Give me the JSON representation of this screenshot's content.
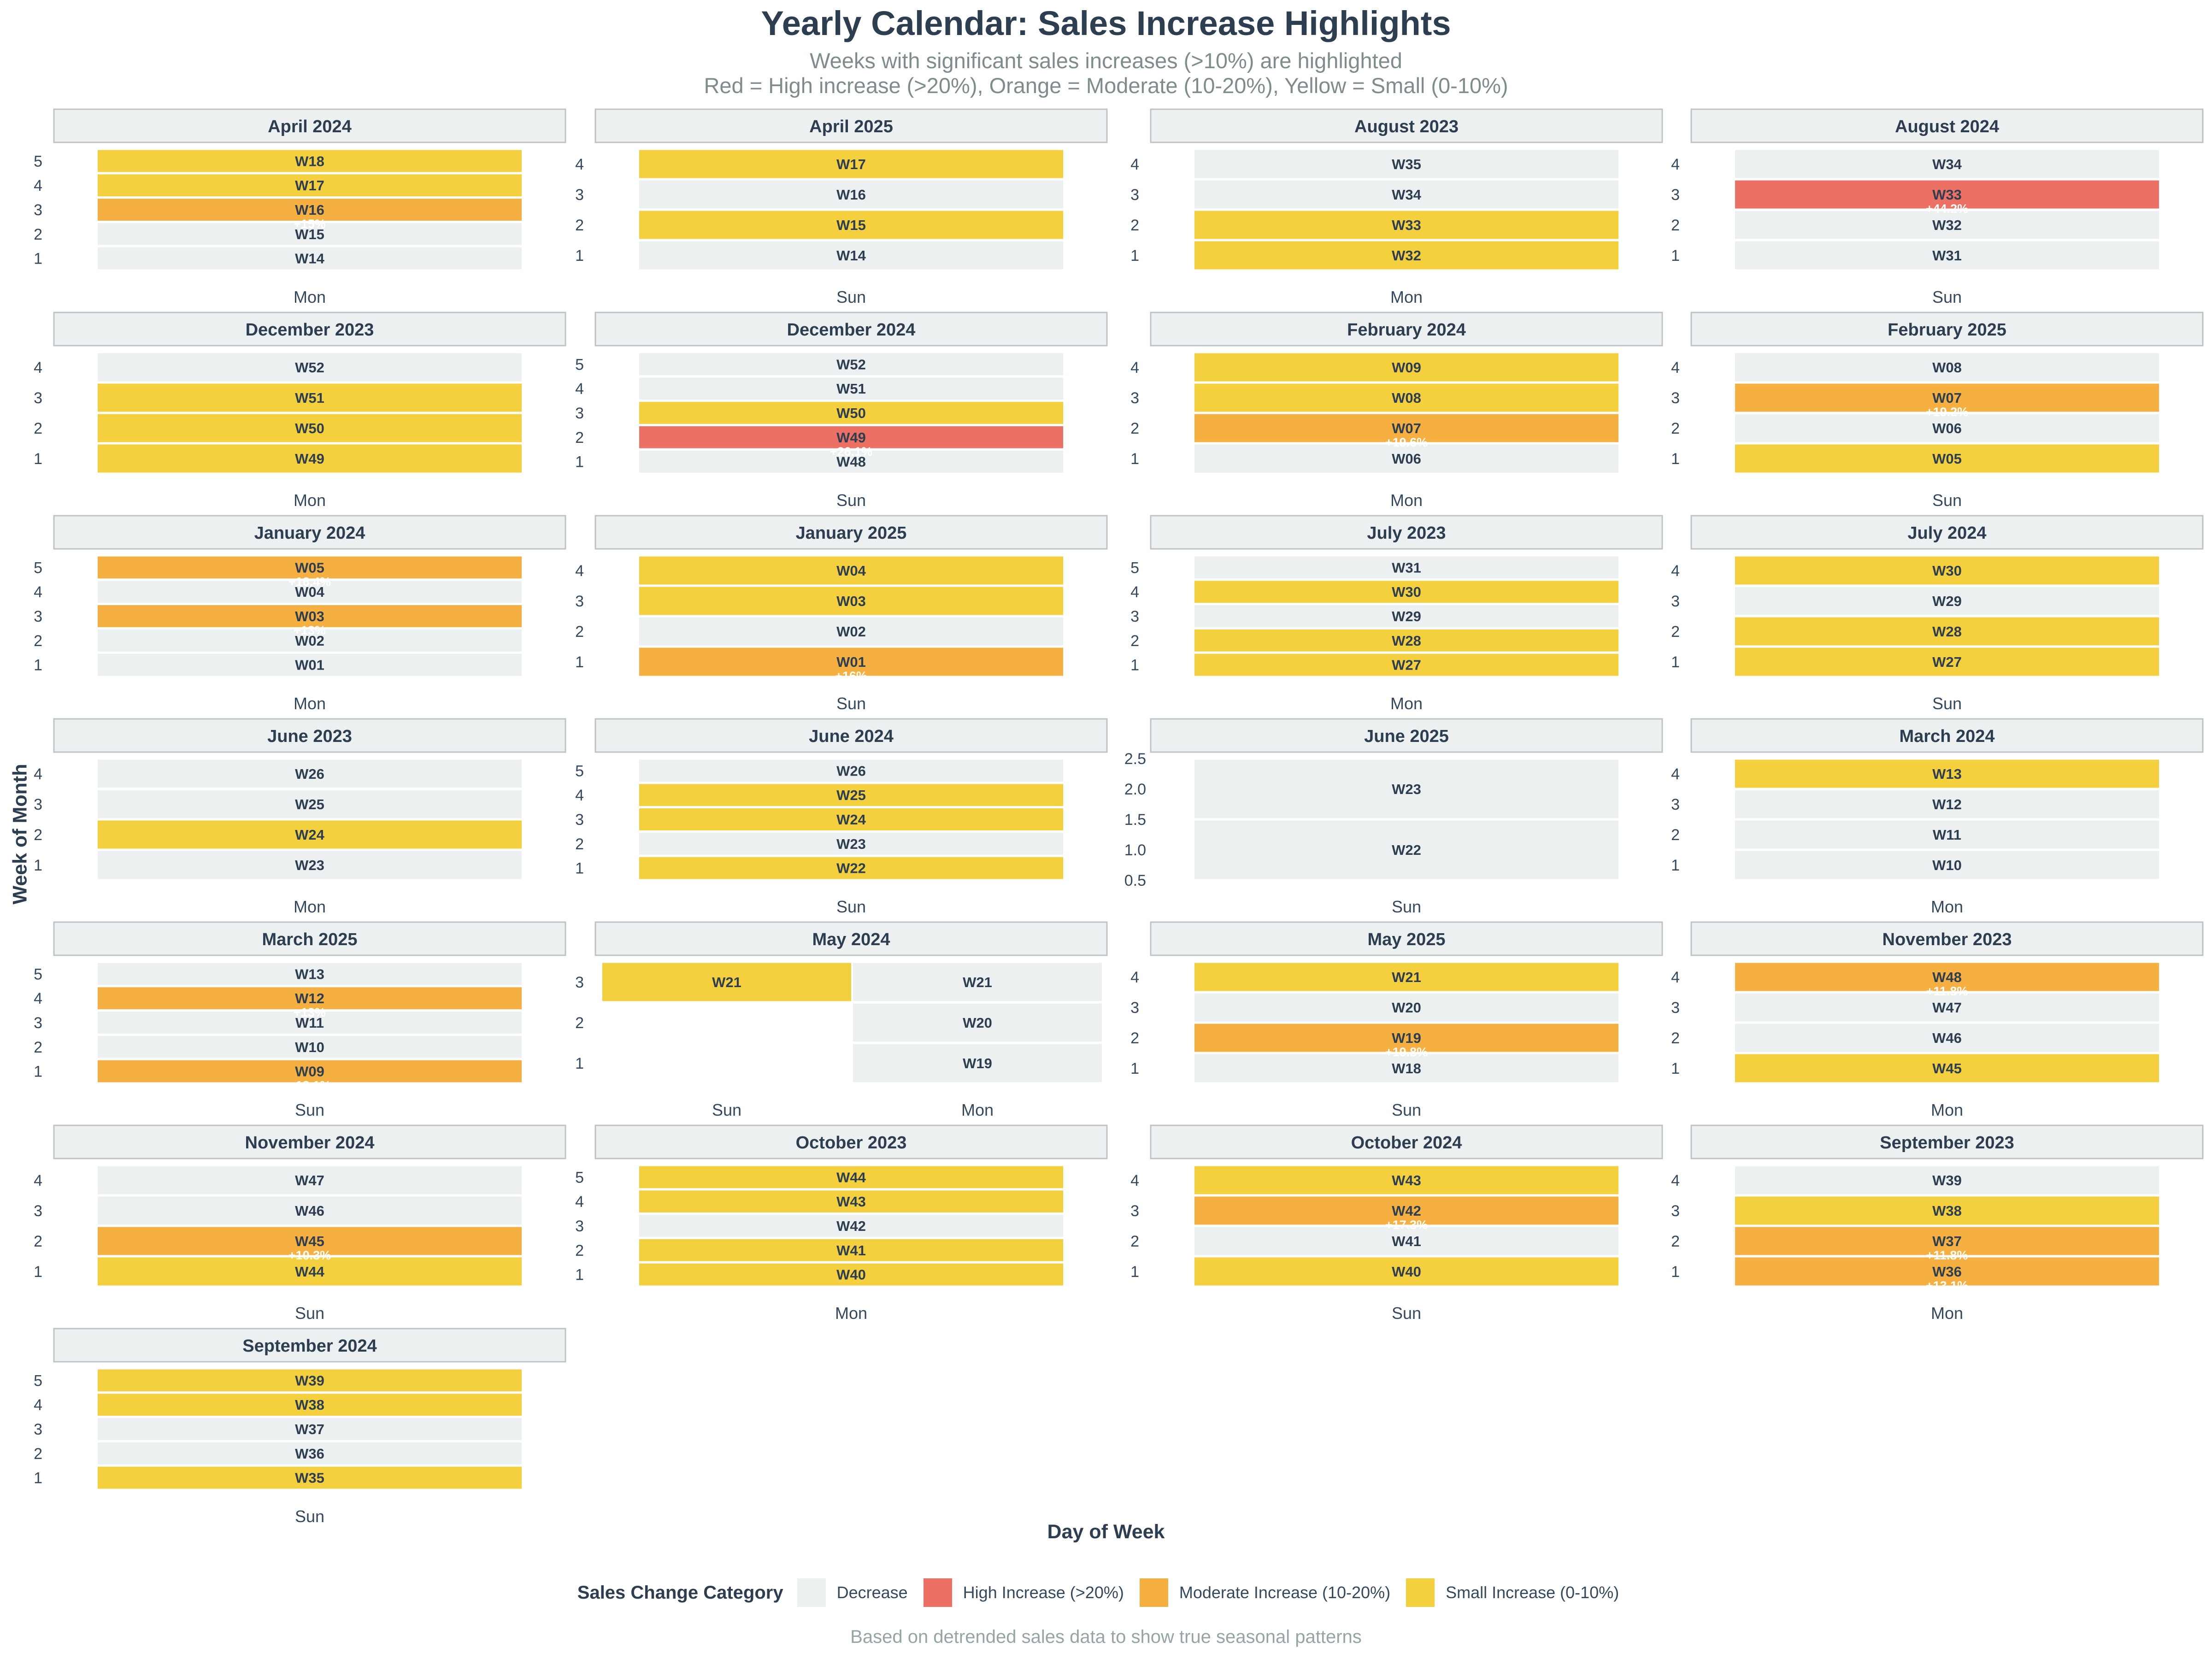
{
  "title": "Yearly Calendar: Sales Increase Highlights",
  "subtitle_line1": "Weeks with significant sales increases (>10%) are highlighted",
  "subtitle_line2": "Red = High increase (>20%), Orange = Moderate (10-20%), Yellow = Small (0-10%)",
  "y_axis_label": "Week of Month",
  "x_axis_label": "Day of Week",
  "caption": "Based on detrended sales data to show true seasonal patterns",
  "legend": {
    "title": "Sales Change Category",
    "items": [
      {
        "label": "Decrease",
        "color": "#ecf0f1"
      },
      {
        "label": "High Increase (>20%)",
        "color": "#ec7063"
      },
      {
        "label": "Moderate Increase (10-20%)",
        "color": "#f5b041"
      },
      {
        "label": "Small Increase (0-10%)",
        "color": "#f4d03f"
      }
    ]
  },
  "colors": {
    "D": "#ecf0f1",
    "H": "#ec7063",
    "M": "#f5b041",
    "S": "#f4d03f",
    "strip": "#ecf0f1",
    "strip_border": "#bdc3c7",
    "text": "#2c3e50"
  },
  "chart_data": {
    "type": "heatmap",
    "panels": [
      {
        "title": "April 2024",
        "day": "Mon",
        "weeks": [
          {
            "wom": 1,
            "label": "W14",
            "cat": "D"
          },
          {
            "wom": 2,
            "label": "W15",
            "cat": "D"
          },
          {
            "wom": 3,
            "label": "W16",
            "cat": "M",
            "pct": "+15%"
          },
          {
            "wom": 4,
            "label": "W17",
            "cat": "S"
          },
          {
            "wom": 5,
            "label": "W18",
            "cat": "S"
          }
        ]
      },
      {
        "title": "April 2025",
        "day": "Sun",
        "weeks": [
          {
            "wom": 1,
            "label": "W14",
            "cat": "D"
          },
          {
            "wom": 2,
            "label": "W15",
            "cat": "S"
          },
          {
            "wom": 3,
            "label": "W16",
            "cat": "D"
          },
          {
            "wom": 4,
            "label": "W17",
            "cat": "S"
          }
        ]
      },
      {
        "title": "August 2023",
        "day": "Mon",
        "weeks": [
          {
            "wom": 1,
            "label": "W32",
            "cat": "S"
          },
          {
            "wom": 2,
            "label": "W33",
            "cat": "S"
          },
          {
            "wom": 3,
            "label": "W34",
            "cat": "D"
          },
          {
            "wom": 4,
            "label": "W35",
            "cat": "D"
          }
        ]
      },
      {
        "title": "August 2024",
        "day": "Sun",
        "weeks": [
          {
            "wom": 1,
            "label": "W31",
            "cat": "D"
          },
          {
            "wom": 2,
            "label": "W32",
            "cat": "D"
          },
          {
            "wom": 3,
            "label": "W33",
            "cat": "H",
            "pct": "+44.2%"
          },
          {
            "wom": 4,
            "label": "W34",
            "cat": "D"
          }
        ]
      },
      {
        "title": "December 2023",
        "day": "Mon",
        "weeks": [
          {
            "wom": 1,
            "label": "W49",
            "cat": "S"
          },
          {
            "wom": 2,
            "label": "W50",
            "cat": "S"
          },
          {
            "wom": 3,
            "label": "W51",
            "cat": "S"
          },
          {
            "wom": 4,
            "label": "W52",
            "cat": "D"
          }
        ]
      },
      {
        "title": "December 2024",
        "day": "Sun",
        "weeks": [
          {
            "wom": 1,
            "label": "W48",
            "cat": "D"
          },
          {
            "wom": 2,
            "label": "W49",
            "cat": "H",
            "pct": "+26.1%"
          },
          {
            "wom": 3,
            "label": "W50",
            "cat": "S"
          },
          {
            "wom": 4,
            "label": "W51",
            "cat": "D"
          },
          {
            "wom": 5,
            "label": "W52",
            "cat": "D"
          }
        ]
      },
      {
        "title": "February 2024",
        "day": "Mon",
        "weeks": [
          {
            "wom": 1,
            "label": "W06",
            "cat": "D"
          },
          {
            "wom": 2,
            "label": "W07",
            "cat": "M",
            "pct": "+19.6%"
          },
          {
            "wom": 3,
            "label": "W08",
            "cat": "S"
          },
          {
            "wom": 4,
            "label": "W09",
            "cat": "S"
          }
        ]
      },
      {
        "title": "February 2025",
        "day": "Sun",
        "weeks": [
          {
            "wom": 1,
            "label": "W05",
            "cat": "S"
          },
          {
            "wom": 2,
            "label": "W06",
            "cat": "D"
          },
          {
            "wom": 3,
            "label": "W07",
            "cat": "M",
            "pct": "+19.2%"
          },
          {
            "wom": 4,
            "label": "W08",
            "cat": "D"
          }
        ]
      },
      {
        "title": "January 2024",
        "day": "Mon",
        "weeks": [
          {
            "wom": 1,
            "label": "W01",
            "cat": "D"
          },
          {
            "wom": 2,
            "label": "W02",
            "cat": "D"
          },
          {
            "wom": 3,
            "label": "W03",
            "cat": "M",
            "pct": "+13%"
          },
          {
            "wom": 4,
            "label": "W04",
            "cat": "D"
          },
          {
            "wom": 5,
            "label": "W05",
            "cat": "M",
            "pct": "+16.4%"
          }
        ]
      },
      {
        "title": "January 2025",
        "day": "Sun",
        "weeks": [
          {
            "wom": 1,
            "label": "W01",
            "cat": "M",
            "pct": "+16%"
          },
          {
            "wom": 2,
            "label": "W02",
            "cat": "D"
          },
          {
            "wom": 3,
            "label": "W03",
            "cat": "S"
          },
          {
            "wom": 4,
            "label": "W04",
            "cat": "S"
          }
        ]
      },
      {
        "title": "July 2023",
        "day": "Mon",
        "weeks": [
          {
            "wom": 1,
            "label": "W27",
            "cat": "S"
          },
          {
            "wom": 2,
            "label": "W28",
            "cat": "S"
          },
          {
            "wom": 3,
            "label": "W29",
            "cat": "D"
          },
          {
            "wom": 4,
            "label": "W30",
            "cat": "S"
          },
          {
            "wom": 5,
            "label": "W31",
            "cat": "D"
          }
        ]
      },
      {
        "title": "July 2024",
        "day": "Sun",
        "weeks": [
          {
            "wom": 1,
            "label": "W27",
            "cat": "S"
          },
          {
            "wom": 2,
            "label": "W28",
            "cat": "S"
          },
          {
            "wom": 3,
            "label": "W29",
            "cat": "D"
          },
          {
            "wom": 4,
            "label": "W30",
            "cat": "S"
          }
        ]
      },
      {
        "title": "June 2023",
        "day": "Mon",
        "weeks": [
          {
            "wom": 1,
            "label": "W23",
            "cat": "D"
          },
          {
            "wom": 2,
            "label": "W24",
            "cat": "S"
          },
          {
            "wom": 3,
            "label": "W25",
            "cat": "D"
          },
          {
            "wom": 4,
            "label": "W26",
            "cat": "D"
          }
        ]
      },
      {
        "title": "June 2024",
        "day": "Sun",
        "weeks": [
          {
            "wom": 1,
            "label": "W22",
            "cat": "S"
          },
          {
            "wom": 2,
            "label": "W23",
            "cat": "D"
          },
          {
            "wom": 3,
            "label": "W24",
            "cat": "S"
          },
          {
            "wom": 4,
            "label": "W25",
            "cat": "S"
          },
          {
            "wom": 5,
            "label": "W26",
            "cat": "D"
          }
        ]
      },
      {
        "title": "June 2025",
        "day": "Sun",
        "ylim": [
          0.5,
          2.5
        ],
        "yticks": [
          "0.5",
          "1.0",
          "1.5",
          "2.0",
          "2.5"
        ],
        "weeks": [
          {
            "wom": 1,
            "label": "W22",
            "cat": "D"
          },
          {
            "wom": 2,
            "label": "W23",
            "cat": "D"
          }
        ]
      },
      {
        "title": "March 2024",
        "day": "Mon",
        "weeks": [
          {
            "wom": 1,
            "label": "W10",
            "cat": "D"
          },
          {
            "wom": 2,
            "label": "W11",
            "cat": "D"
          },
          {
            "wom": 3,
            "label": "W12",
            "cat": "D"
          },
          {
            "wom": 4,
            "label": "W13",
            "cat": "S"
          }
        ]
      },
      {
        "title": "March 2025",
        "day": "Sun",
        "weeks": [
          {
            "wom": 1,
            "label": "W09",
            "cat": "M",
            "pct": "+13.1%"
          },
          {
            "wom": 2,
            "label": "W10",
            "cat": "D"
          },
          {
            "wom": 3,
            "label": "W11",
            "cat": "D"
          },
          {
            "wom": 4,
            "label": "W12",
            "cat": "M",
            "pct": "+13%"
          },
          {
            "wom": 5,
            "label": "W13",
            "cat": "D"
          }
        ]
      },
      {
        "title": "May 2024",
        "days": [
          "Sun",
          "Mon"
        ],
        "ylim": [
          0.5,
          3.5
        ],
        "weeks": [
          {
            "wom": 1,
            "day": "Mon",
            "label": "W19",
            "cat": "D"
          },
          {
            "wom": 2,
            "day": "Mon",
            "label": "W20",
            "cat": "D"
          },
          {
            "wom": 3,
            "day": "Mon",
            "label": "W21",
            "cat": "D"
          },
          {
            "wom": 3,
            "day": "Sun",
            "label": "W21",
            "cat": "S"
          }
        ]
      },
      {
        "title": "May 2025",
        "day": "Sun",
        "weeks": [
          {
            "wom": 1,
            "label": "W18",
            "cat": "D"
          },
          {
            "wom": 2,
            "label": "W19",
            "cat": "M",
            "pct": "+19.8%"
          },
          {
            "wom": 3,
            "label": "W20",
            "cat": "D"
          },
          {
            "wom": 4,
            "label": "W21",
            "cat": "S"
          }
        ]
      },
      {
        "title": "November 2023",
        "day": "Mon",
        "weeks": [
          {
            "wom": 1,
            "label": "W45",
            "cat": "S"
          },
          {
            "wom": 2,
            "label": "W46",
            "cat": "D"
          },
          {
            "wom": 3,
            "label": "W47",
            "cat": "D"
          },
          {
            "wom": 4,
            "label": "W48",
            "cat": "M",
            "pct": "+11.8%"
          }
        ]
      },
      {
        "title": "November 2024",
        "day": "Sun",
        "weeks": [
          {
            "wom": 1,
            "label": "W44",
            "cat": "S"
          },
          {
            "wom": 2,
            "label": "W45",
            "cat": "M",
            "pct": "+10.3%"
          },
          {
            "wom": 3,
            "label": "W46",
            "cat": "D"
          },
          {
            "wom": 4,
            "label": "W47",
            "cat": "D"
          }
        ]
      },
      {
        "title": "October 2023",
        "day": "Mon",
        "weeks": [
          {
            "wom": 1,
            "label": "W40",
            "cat": "S"
          },
          {
            "wom": 2,
            "label": "W41",
            "cat": "S"
          },
          {
            "wom": 3,
            "label": "W42",
            "cat": "D"
          },
          {
            "wom": 4,
            "label": "W43",
            "cat": "S"
          },
          {
            "wom": 5,
            "label": "W44",
            "cat": "S"
          }
        ]
      },
      {
        "title": "October 2024",
        "day": "Sun",
        "weeks": [
          {
            "wom": 1,
            "label": "W40",
            "cat": "S"
          },
          {
            "wom": 2,
            "label": "W41",
            "cat": "D"
          },
          {
            "wom": 3,
            "label": "W42",
            "cat": "M",
            "pct": "+17.3%"
          },
          {
            "wom": 4,
            "label": "W43",
            "cat": "S"
          }
        ]
      },
      {
        "title": "September 2023",
        "day": "Mon",
        "weeks": [
          {
            "wom": 1,
            "label": "W36",
            "cat": "M",
            "pct": "+13.1%"
          },
          {
            "wom": 2,
            "label": "W37",
            "cat": "M",
            "pct": "+11.8%"
          },
          {
            "wom": 3,
            "label": "W38",
            "cat": "S"
          },
          {
            "wom": 4,
            "label": "W39",
            "cat": "D"
          }
        ]
      },
      {
        "title": "September 2024",
        "day": "Sun",
        "weeks": [
          {
            "wom": 1,
            "label": "W35",
            "cat": "S"
          },
          {
            "wom": 2,
            "label": "W36",
            "cat": "D"
          },
          {
            "wom": 3,
            "label": "W37",
            "cat": "D"
          },
          {
            "wom": 4,
            "label": "W38",
            "cat": "S"
          },
          {
            "wom": 5,
            "label": "W39",
            "cat": "S"
          }
        ]
      }
    ]
  }
}
